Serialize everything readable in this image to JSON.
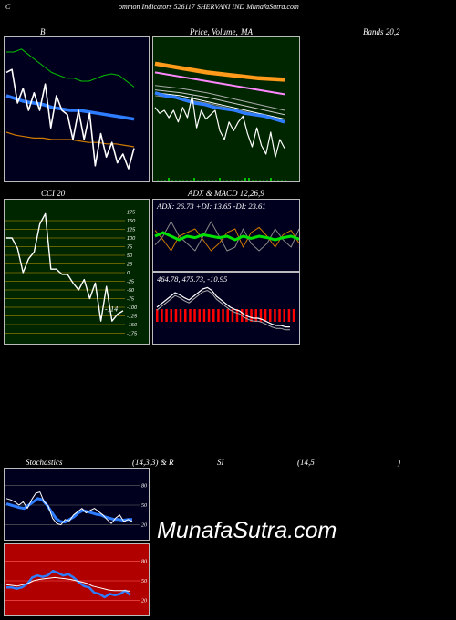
{
  "header": {
    "title_initial": "C",
    "title_rest": "ommon  Indicators 526117 SHERVANI IND MunafaSutra.com"
  },
  "labels": {
    "bb": "B",
    "price": "Price,",
    "volume": "Volume,",
    "ma": "MA",
    "bands": "Bands 20,2",
    "cci": "CCI 20",
    "adx": "ADX  & MACD 12,26,9",
    "stoch": "Stochastics",
    "stoch_params": "(14,3,3) & R",
    "si": "SI",
    "rsi_params": "(14,5",
    "close_paren": ")"
  },
  "adx_readout": "ADX: 26.73  +DI: 13.65 -DI: 23.61",
  "macd_readout": "464.78,  475.73,  -10.95",
  "cci_readout": "-114",
  "watermark": "MunafaSutra.com",
  "colors": {
    "accent_blue": "#2f7dff",
    "bars_red": "#ff0000",
    "green_panel": "#002600",
    "red_panel": "#b00000",
    "navy": "#00001e"
  },
  "chart_data": [
    {
      "type": "line",
      "title": "Bollinger Bands 20,2",
      "series": [
        {
          "values": [
            0.76,
            0.78,
            0.55,
            0.65,
            0.5,
            0.62,
            0.5,
            0.68,
            0.38,
            0.6,
            0.5,
            0.47,
            0.3,
            0.5,
            0.3,
            0.48,
            0.12,
            0.34,
            0.18,
            0.28,
            0.14,
            0.2,
            0.1,
            0.24
          ]
        },
        {
          "values": [
            0.9,
            0.9,
            0.92,
            0.88,
            0.84,
            0.8,
            0.76,
            0.74,
            0.72,
            0.72,
            0.7,
            0.7,
            0.72,
            0.74,
            0.75,
            0.74,
            0.7,
            0.66
          ]
        },
        {
          "values": [
            0.6,
            0.58,
            0.56,
            0.55,
            0.54,
            0.52,
            0.51,
            0.5,
            0.5,
            0.49,
            0.48,
            0.47,
            0.46,
            0.45,
            0.44
          ]
        },
        {
          "values": [
            0.35,
            0.33,
            0.32,
            0.31,
            0.31,
            0.3,
            0.3,
            0.3,
            0.29,
            0.28,
            0.28,
            0.27,
            0.27,
            0.26,
            0.25
          ]
        }
      ]
    },
    {
      "type": "line",
      "title": "Price, Volume, MA",
      "series": [
        {
          "values": [
            0.52,
            0.48,
            0.5,
            0.45,
            0.5,
            0.42,
            0.52,
            0.45,
            0.6,
            0.38,
            0.5,
            0.44,
            0.47,
            0.5,
            0.36,
            0.3,
            0.42,
            0.36,
            0.42,
            0.46,
            0.34,
            0.25,
            0.38,
            0.26,
            0.2,
            0.35,
            0.18,
            0.3,
            0.24
          ]
        }
      ]
    },
    {
      "type": "line",
      "title": "CCI 20",
      "yticks": [
        175,
        150,
        125,
        100,
        75,
        50,
        25,
        0,
        -25,
        -50,
        -75,
        -100,
        -125,
        -150,
        -175
      ],
      "series": [
        {
          "values": [
            100,
            100,
            70,
            0,
            40,
            60,
            140,
            170,
            10,
            10,
            -5,
            -5,
            -30,
            -50,
            -20,
            -75,
            -30,
            -140,
            -40,
            -140,
            -120,
            -110
          ]
        }
      ]
    },
    {
      "type": "line",
      "title": "ADX",
      "series": [
        {
          "values": [
            0.5,
            0.55,
            0.5,
            0.45,
            0.5,
            0.48,
            0.52,
            0.5,
            0.48,
            0.5,
            0.45,
            0.5,
            0.47,
            0.5,
            0.48,
            0.45,
            0.48,
            0.5,
            0.46
          ]
        }
      ]
    },
    {
      "type": "bar",
      "title": "MACD",
      "series": [
        {
          "values": [
            0.45,
            0.5,
            0.55,
            0.6,
            0.65,
            0.62,
            0.58,
            0.55,
            0.6,
            0.65,
            0.7,
            0.72,
            0.68,
            0.6,
            0.55,
            0.5,
            0.45,
            0.42,
            0.4,
            0.35,
            0.32,
            0.3,
            0.3,
            0.28,
            0.25,
            0.22,
            0.2,
            0.2,
            0.18,
            0.18
          ]
        }
      ]
    },
    {
      "type": "line",
      "title": "Stochastics (14,3,3)",
      "yticks": [
        80,
        50,
        20
      ],
      "series": [
        {
          "values": [
            60,
            58,
            55,
            50,
            55,
            45,
            58,
            68,
            70,
            55,
            48,
            30,
            22,
            20,
            28,
            26,
            35,
            40,
            45,
            38,
            42,
            45,
            40,
            35,
            28,
            22,
            30,
            35,
            25,
            28,
            25
          ]
        },
        {
          "values": [
            52,
            50,
            48,
            46,
            45,
            50,
            55,
            60,
            58,
            50,
            40,
            30,
            25,
            24,
            28,
            32,
            38,
            42,
            40,
            38,
            36,
            35,
            32,
            30,
            28,
            28,
            27,
            28,
            28
          ]
        }
      ]
    },
    {
      "type": "line",
      "title": "RSI (14,5)",
      "yticks": [
        80,
        50,
        20
      ],
      "series": [
        {
          "values": [
            40,
            40,
            38,
            40,
            45,
            55,
            58,
            56,
            58,
            65,
            62,
            58,
            60,
            55,
            48,
            42,
            40,
            32,
            30,
            25,
            30,
            28,
            30,
            35,
            28
          ]
        },
        {
          "values": [
            44,
            43,
            42,
            44,
            46,
            50,
            52,
            53,
            54,
            55,
            54,
            53,
            52,
            50,
            48,
            46,
            42,
            40,
            38,
            36,
            35,
            35,
            35,
            34
          ]
        }
      ]
    }
  ]
}
